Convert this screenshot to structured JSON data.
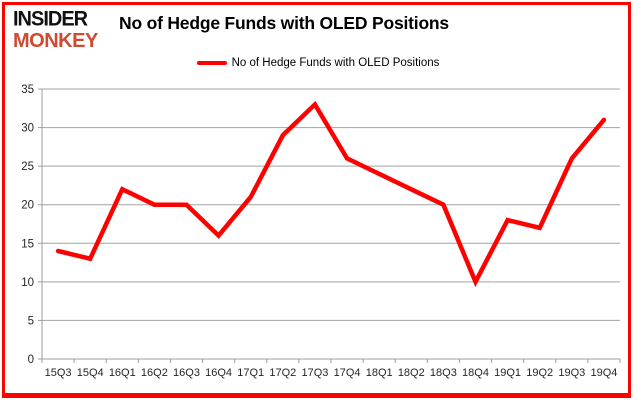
{
  "brand": {
    "line1": "INSIDER",
    "line2": "MONKEY"
  },
  "title": "No of Hedge Funds with OLED Positions",
  "legend": {
    "label": "No of Hedge Funds with OLED Positions"
  },
  "colors": {
    "line": "#ff0000",
    "grid": "#a3a3a3",
    "axis": "#9d9d9d",
    "border": "#fb0400",
    "brand_monkey": "#cf4a31",
    "tick_text": "#262626"
  },
  "chart_data": {
    "type": "line",
    "title": "No of Hedge Funds with OLED Positions",
    "categories": [
      "15Q3",
      "15Q4",
      "16Q1",
      "16Q2",
      "16Q3",
      "16Q4",
      "17Q1",
      "17Q2",
      "17Q3",
      "17Q4",
      "18Q1",
      "18Q2",
      "18Q3",
      "18Q4",
      "19Q1",
      "19Q2",
      "19Q3",
      "19Q4"
    ],
    "series": [
      {
        "name": "No of Hedge Funds with OLED Positions",
        "values": [
          14,
          13,
          22,
          20,
          20,
          16,
          21,
          29,
          33,
          26,
          24,
          22,
          20,
          10,
          18,
          17,
          26,
          31
        ]
      }
    ],
    "xlabel": "",
    "ylabel": "",
    "ylim": [
      0,
      35
    ],
    "yticks": [
      0,
      5,
      10,
      15,
      20,
      25,
      30,
      35
    ],
    "grid": true,
    "legend_position": "top-center"
  }
}
